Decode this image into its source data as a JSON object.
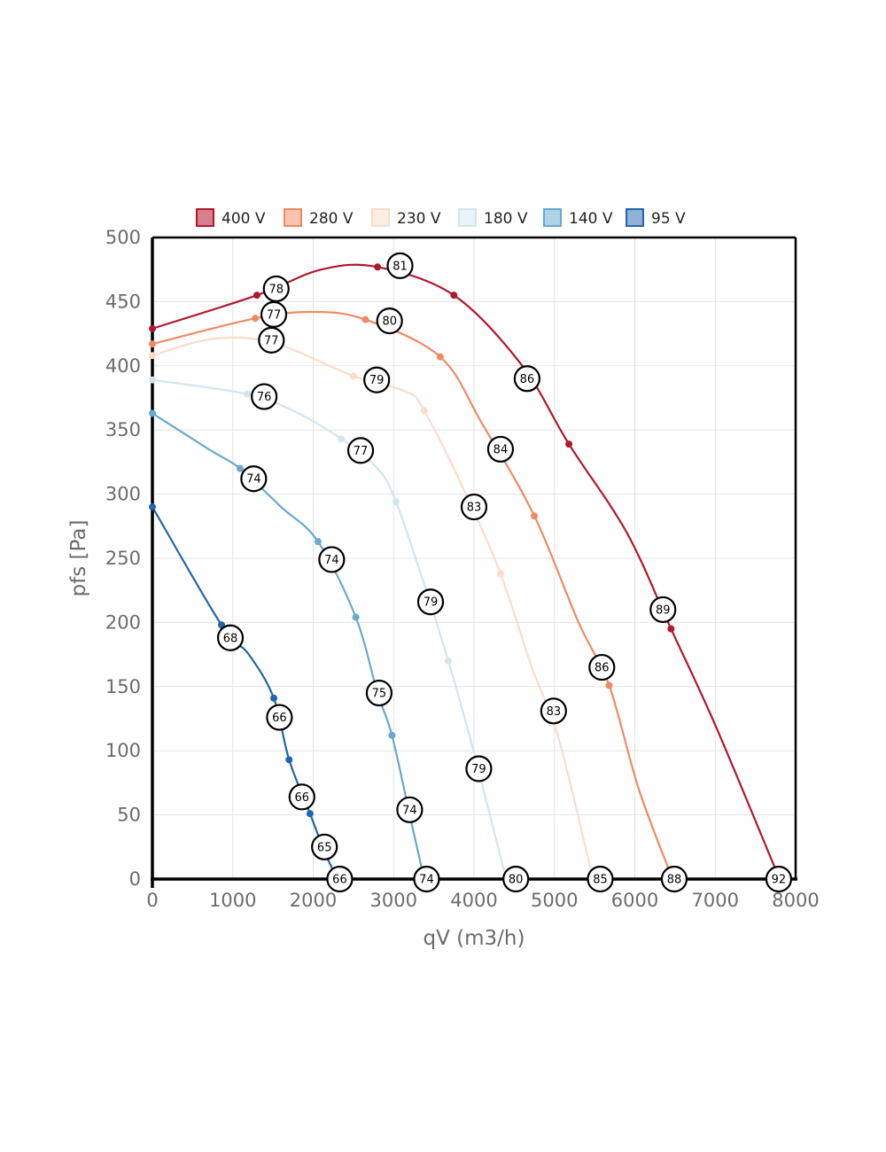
{
  "chart_data": {
    "type": "line",
    "xlabel": "qV (m3/h)",
    "ylabel": "pfs [Pa]",
    "xlim": [
      0,
      8000
    ],
    "ylim": [
      0,
      500
    ],
    "x_ticks": [
      0,
      1000,
      2000,
      3000,
      4000,
      5000,
      6000,
      7000,
      8000
    ],
    "y_ticks": [
      0,
      50,
      100,
      150,
      200,
      250,
      300,
      350,
      400,
      450,
      500
    ],
    "grid": true,
    "legend_position": "top",
    "series": [
      {
        "name": "400 V",
        "color": "#b2182b",
        "fill": "#d6808b",
        "points": [
          [
            0,
            429
          ],
          [
            1300,
            455
          ],
          [
            2100,
            475
          ],
          [
            2800,
            477
          ],
          [
            3750,
            455
          ],
          [
            4600,
            400
          ],
          [
            5180,
            339
          ],
          [
            5900,
            270
          ],
          [
            6450,
            195
          ],
          [
            7000,
            120
          ],
          [
            7800,
            0
          ]
        ],
        "markers": [
          [
            0,
            429
          ],
          [
            1300,
            455
          ],
          [
            2800,
            477
          ],
          [
            3750,
            455
          ],
          [
            5180,
            339
          ],
          [
            6450,
            195
          ],
          [
            7800,
            0
          ]
        ],
        "labels": [
          {
            "x": 1540,
            "y": 460,
            "text": "78"
          },
          {
            "x": 3080,
            "y": 478,
            "text": "81"
          },
          {
            "x": 4660,
            "y": 390,
            "text": "86"
          },
          {
            "x": 6350,
            "y": 210,
            "text": "89"
          },
          {
            "x": 7790,
            "y": 0,
            "text": "92"
          }
        ]
      },
      {
        "name": "280 V",
        "color": "#ef8a62",
        "fill": "#f7c4ad",
        "points": [
          [
            0,
            417
          ],
          [
            1280,
            437
          ],
          [
            2000,
            442
          ],
          [
            2650,
            436
          ],
          [
            3580,
            407
          ],
          [
            4100,
            355
          ],
          [
            4750,
            283
          ],
          [
            5300,
            200
          ],
          [
            5680,
            151
          ],
          [
            6050,
            70
          ],
          [
            6470,
            0
          ]
        ],
        "markers": [
          [
            0,
            417
          ],
          [
            1280,
            437
          ],
          [
            2650,
            436
          ],
          [
            3580,
            407
          ],
          [
            4750,
            283
          ],
          [
            5680,
            151
          ]
        ],
        "labels": [
          {
            "x": 1510,
            "y": 440,
            "text": "77"
          },
          {
            "x": 2950,
            "y": 435,
            "text": "80"
          },
          {
            "x": 4330,
            "y": 335,
            "text": "84"
          },
          {
            "x": 5590,
            "y": 165,
            "text": "86"
          },
          {
            "x": 6490,
            "y": 0,
            "text": "88"
          }
        ]
      },
      {
        "name": "230 V",
        "color": "#fddbc7",
        "fill": "#fdeee4",
        "points": [
          [
            0,
            408
          ],
          [
            750,
            421
          ],
          [
            1500,
            418
          ],
          [
            2500,
            392
          ],
          [
            3150,
            380
          ],
          [
            3380,
            365
          ],
          [
            3900,
            300
          ],
          [
            4330,
            238
          ],
          [
            4720,
            165
          ],
          [
            5050,
            110
          ],
          [
            5480,
            0
          ]
        ],
        "markers": [
          [
            0,
            408
          ],
          [
            2500,
            392
          ],
          [
            3380,
            365
          ],
          [
            4330,
            238
          ]
        ],
        "labels": [
          {
            "x": 1480,
            "y": 420,
            "text": "77"
          },
          {
            "x": 2790,
            "y": 389,
            "text": "79"
          },
          {
            "x": 4000,
            "y": 290,
            "text": "83"
          },
          {
            "x": 4990,
            "y": 131,
            "text": "83"
          },
          {
            "x": 5570,
            "y": 0,
            "text": "85"
          }
        ]
      },
      {
        "name": "180 V",
        "color": "#d1e5f0",
        "fill": "#e8f2f7",
        "points": [
          [
            0,
            389
          ],
          [
            1180,
            378
          ],
          [
            1750,
            365
          ],
          [
            2350,
            343
          ],
          [
            2800,
            320
          ],
          [
            3030,
            294
          ],
          [
            3380,
            230
          ],
          [
            3680,
            170
          ],
          [
            3950,
            110
          ],
          [
            4400,
            0
          ]
        ],
        "markers": [
          [
            0,
            389
          ],
          [
            1180,
            378
          ],
          [
            2350,
            343
          ],
          [
            3030,
            294
          ],
          [
            3680,
            170
          ]
        ],
        "labels": [
          {
            "x": 1390,
            "y": 376,
            "text": "76"
          },
          {
            "x": 2590,
            "y": 334,
            "text": "77"
          },
          {
            "x": 3460,
            "y": 216,
            "text": "79"
          },
          {
            "x": 4060,
            "y": 86,
            "text": "79"
          },
          {
            "x": 4520,
            "y": 0,
            "text": "80"
          }
        ]
      },
      {
        "name": "140 V",
        "color": "#67a9cf",
        "fill": "#add3e7",
        "points": [
          [
            0,
            363
          ],
          [
            700,
            335
          ],
          [
            1090,
            320
          ],
          [
            1600,
            290
          ],
          [
            2060,
            263
          ],
          [
            2530,
            204
          ],
          [
            2800,
            145
          ],
          [
            2980,
            112
          ],
          [
            3200,
            50
          ],
          [
            3380,
            0
          ]
        ],
        "markers": [
          [
            0,
            363
          ],
          [
            1090,
            320
          ],
          [
            2060,
            263
          ],
          [
            2530,
            204
          ],
          [
            2980,
            112
          ]
        ],
        "labels": [
          {
            "x": 1260,
            "y": 312,
            "text": "74"
          },
          {
            "x": 2230,
            "y": 249,
            "text": "74"
          },
          {
            "x": 2820,
            "y": 145,
            "text": "75"
          },
          {
            "x": 3200,
            "y": 54,
            "text": "74"
          },
          {
            "x": 3410,
            "y": 0,
            "text": "74"
          }
        ]
      },
      {
        "name": "95 V",
        "color": "#2166ac",
        "fill": "#8fb2d6",
        "points": [
          [
            0,
            290
          ],
          [
            860,
            198
          ],
          [
            1200,
            175
          ],
          [
            1510,
            141
          ],
          [
            1700,
            93
          ],
          [
            1960,
            51
          ],
          [
            2150,
            20
          ],
          [
            2300,
            0
          ]
        ],
        "markers": [
          [
            0,
            290
          ],
          [
            860,
            198
          ],
          [
            1510,
            141
          ],
          [
            1700,
            93
          ],
          [
            1960,
            51
          ]
        ],
        "labels": [
          {
            "x": 970,
            "y": 188,
            "text": "68"
          },
          {
            "x": 1580,
            "y": 126,
            "text": "66"
          },
          {
            "x": 1860,
            "y": 64,
            "text": "66"
          },
          {
            "x": 2140,
            "y": 25,
            "text": "65"
          },
          {
            "x": 2330,
            "y": 0,
            "text": "66"
          }
        ]
      }
    ]
  }
}
